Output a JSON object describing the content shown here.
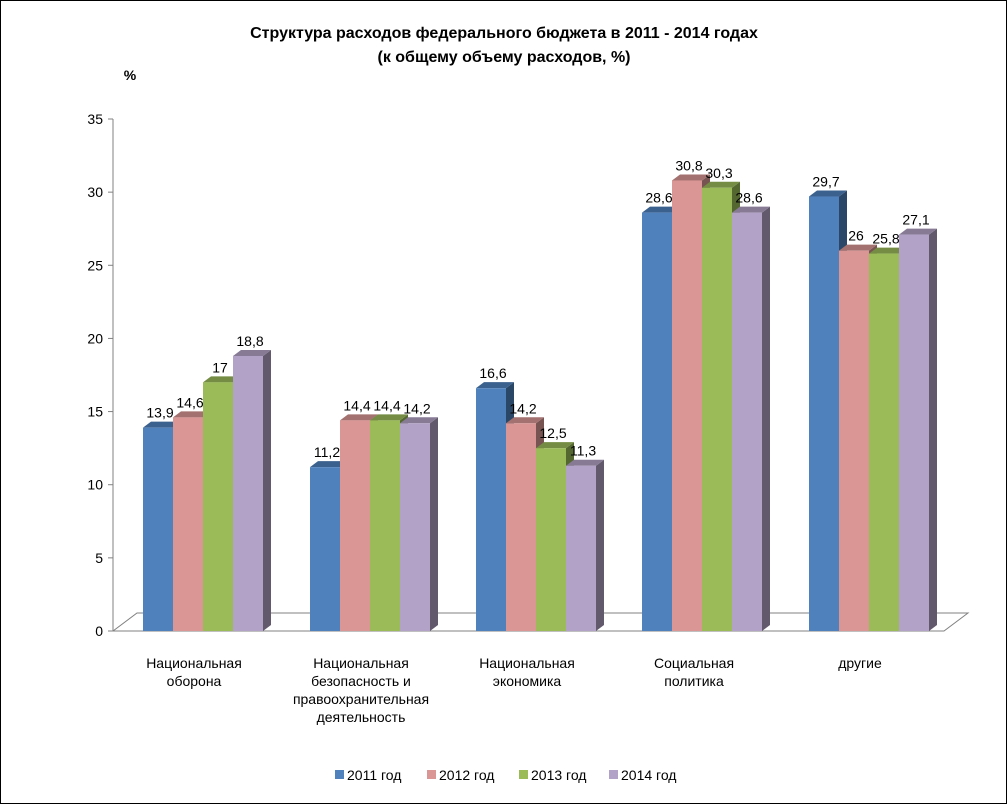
{
  "chart_data": {
    "type": "bar",
    "title": "Структура расходов федерального бюджета в 2011 - 2014 годах",
    "subtitle": "(к общему объему расходов,  %)",
    "ylabel": "%",
    "xlabel": "",
    "ylim": [
      0,
      35
    ],
    "yticks": [
      "0",
      "5",
      "10",
      "15",
      "20",
      "25",
      "30",
      "35"
    ],
    "grid": false,
    "legend_position": "bottom",
    "categories": [
      [
        "Национальная",
        "оборона"
      ],
      [
        "Национальная",
        "безопасность и",
        "правоохранительная",
        "деятельность"
      ],
      [
        "Национальная",
        "экономика"
      ],
      [
        "Социальная",
        "политика"
      ],
      [
        "другие"
      ]
    ],
    "series": [
      {
        "name": "2011 год",
        "color": "#4f81bd",
        "values": [
          13.9,
          11.2,
          16.6,
          28.6,
          29.7
        ],
        "labels": [
          "13,9",
          "11,2",
          "16,6",
          "28,6",
          "29,7"
        ]
      },
      {
        "name": "2012 год",
        "color": "#d99694",
        "values": [
          14.6,
          14.4,
          14.2,
          30.8,
          26
        ],
        "labels": [
          "14,6",
          "14,4",
          "14,2",
          "30,8",
          "26"
        ]
      },
      {
        "name": "2013 год",
        "color": "#9bbb59",
        "values": [
          17,
          14.4,
          12.5,
          30.3,
          25.8
        ],
        "labels": [
          "17",
          "14,4",
          "12,5",
          "30,3",
          "25,8"
        ]
      },
      {
        "name": "2014 год",
        "color": "#b3a2c7",
        "values": [
          18.8,
          14.2,
          11.3,
          28.6,
          27.1
        ],
        "labels": [
          "18,8",
          "14,2",
          "11,3",
          "28,6",
          "27,1"
        ]
      }
    ]
  }
}
